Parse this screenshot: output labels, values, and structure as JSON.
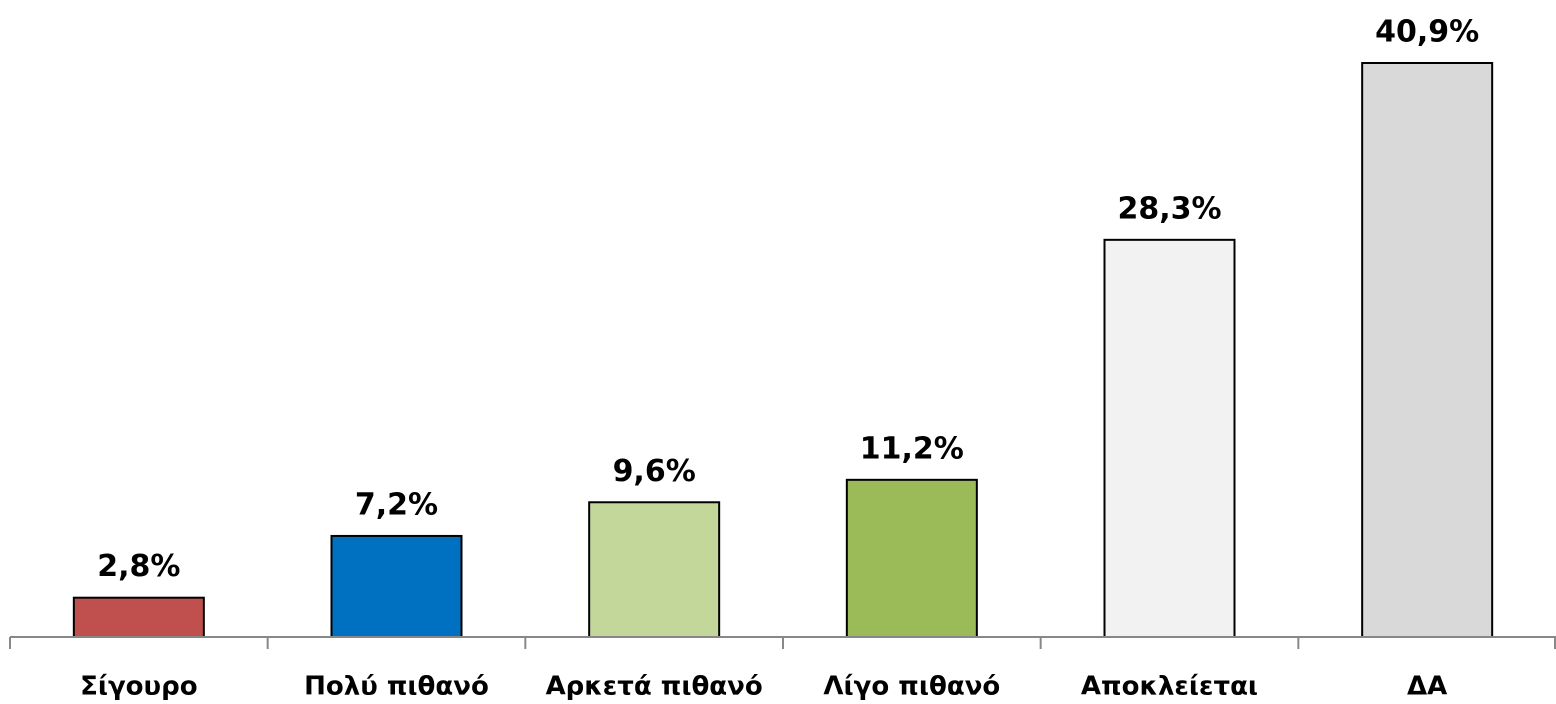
{
  "chart_data": {
    "type": "bar",
    "categories": [
      "Σίγουρο",
      "Πολύ πιθανό",
      "Αρκετά πιθανό",
      "Λίγο πιθανό",
      "Αποκλείεται",
      "ΔΑ"
    ],
    "values": [
      2.8,
      7.2,
      9.6,
      11.2,
      28.3,
      40.9
    ],
    "value_labels": [
      "2,8%",
      "7,2%",
      "9,6%",
      "11,2%",
      "28,3%",
      "40,9%"
    ],
    "colors": [
      "#c0504d",
      "#0070c0",
      "#c4d79b",
      "#9bbb59",
      "#f2f2f2",
      "#d9d9d9"
    ]
  }
}
